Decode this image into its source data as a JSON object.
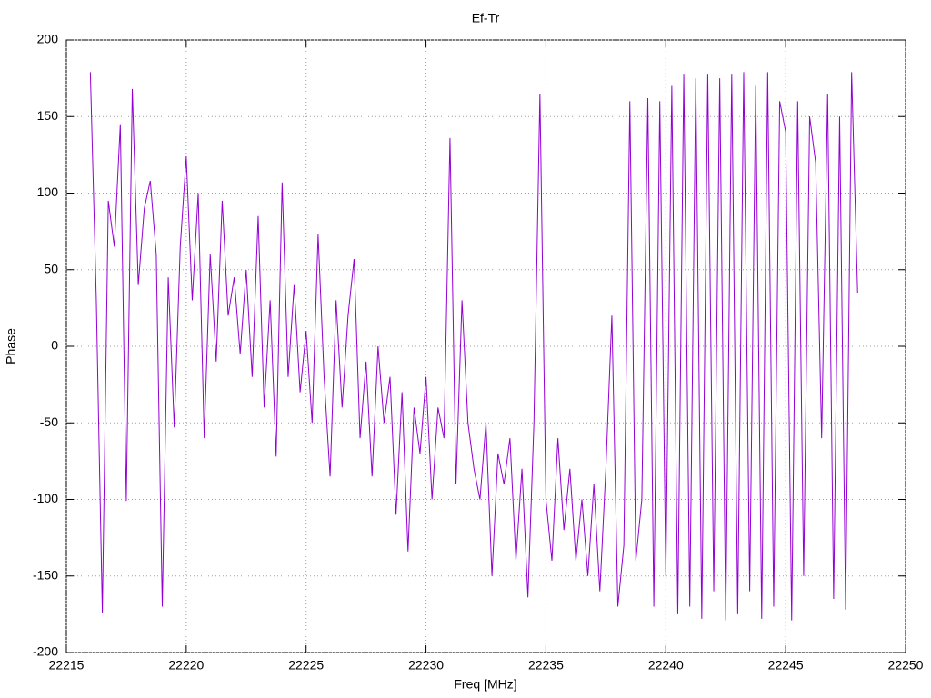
{
  "chart_data": {
    "type": "line",
    "title": "Ef-Tr",
    "x_label": "Freq [MHz]",
    "y_label": "Phase",
    "color": "#9400d3",
    "grid": true,
    "xlim": [
      22215,
      22250
    ],
    "xticks": [
      22215,
      22220,
      22225,
      22230,
      22235,
      22240,
      22245,
      22250
    ],
    "ylim": [
      -200,
      200
    ],
    "yticks": [
      -200,
      -150,
      -100,
      -50,
      0,
      50,
      100,
      150,
      200
    ],
    "x": [
      22216,
      22216.25,
      22216.5,
      22216.75,
      22217,
      22217.25,
      22217.5,
      22217.75,
      22218,
      22218.25,
      22218.5,
      22218.75,
      22219,
      22219.25,
      22219.5,
      22219.75,
      22220,
      22220.25,
      22220.5,
      22220.75,
      22221,
      22221.25,
      22221.5,
      22221.75,
      22222,
      22222.25,
      22222.5,
      22222.75,
      22223,
      22223.25,
      22223.5,
      22223.75,
      22224,
      22224.25,
      22224.5,
      22224.75,
      22225,
      22225.25,
      22225.5,
      22225.75,
      22226,
      22226.25,
      22226.5,
      22226.75,
      22227,
      22227.25,
      22227.5,
      22227.75,
      22228,
      22228.25,
      22228.5,
      22228.75,
      22229,
      22229.25,
      22229.5,
      22229.75,
      22230,
      22230.25,
      22230.5,
      22230.75,
      22231,
      22231.25,
      22231.5,
      22231.75,
      22232,
      22232.25,
      22232.5,
      22232.75,
      22233,
      22233.25,
      22233.5,
      22233.75,
      22234,
      22234.25,
      22234.5,
      22234.75,
      22235,
      22235.25,
      22235.5,
      22235.75,
      22236,
      22236.25,
      22236.5,
      22236.75,
      22237,
      22237.25,
      22237.5,
      22237.75,
      22238,
      22238.25,
      22238.5,
      22238.75,
      22239,
      22239.25,
      22239.5,
      22239.75,
      22240,
      22240.25,
      22240.5,
      22240.75,
      22241,
      22241.25,
      22241.5,
      22241.75,
      22242,
      22242.25,
      22242.5,
      22242.75,
      22243,
      22243.25,
      22243.5,
      22243.75,
      22244,
      22244.25,
      22244.5,
      22244.75,
      22245,
      22245.25,
      22245.5,
      22245.75,
      22246,
      22246.25,
      22246.5,
      22246.75,
      22247,
      22247.25,
      22247.5,
      22247.75,
      22248
    ],
    "values": [
      179,
      30,
      -174,
      95,
      65,
      145,
      -101,
      168,
      40,
      90,
      108,
      60,
      -170,
      45,
      -53,
      65,
      124,
      30,
      100,
      -60,
      60,
      -10,
      95,
      20,
      45,
      -5,
      50,
      -20,
      85,
      -40,
      30,
      -72,
      107,
      -20,
      40,
      -30,
      10,
      -50,
      73,
      -20,
      -85,
      30,
      -40,
      20,
      57,
      -60,
      -10,
      -85,
      0,
      -50,
      -20,
      -110,
      -30,
      -134,
      -40,
      -70,
      -20,
      -100,
      -40,
      -60,
      136,
      -90,
      30,
      -50,
      -80,
      -100,
      -50,
      -150,
      -70,
      -90,
      -60,
      -140,
      -80,
      -164,
      -50,
      165,
      -100,
      -140,
      -60,
      -120,
      -80,
      -140,
      -100,
      -150,
      -90,
      -160,
      -80,
      20,
      -170,
      -130,
      160,
      -140,
      -100,
      162,
      -170,
      160,
      -150,
      170,
      -175,
      178,
      -170,
      175,
      -178,
      178,
      -160,
      175,
      -179,
      178,
      -175,
      179,
      -160,
      170,
      -178,
      179,
      -170,
      160,
      140,
      -179,
      160,
      -150,
      150,
      120,
      -60,
      165,
      -165,
      150,
      -172,
      179,
      35
    ]
  }
}
